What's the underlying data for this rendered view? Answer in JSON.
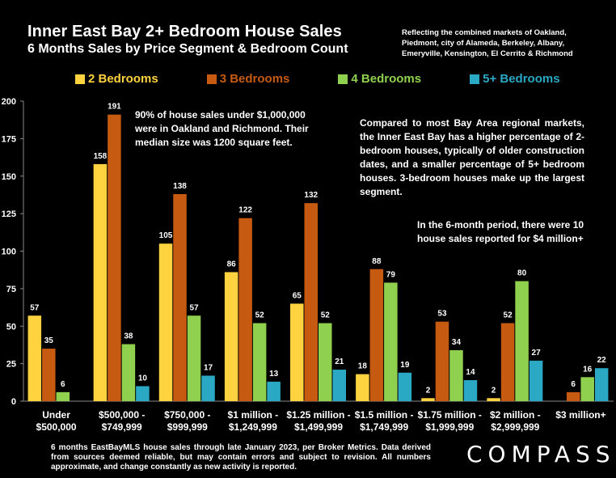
{
  "header": {
    "title": "Inner East Bay 2+ Bedroom House Sales",
    "subtitle": "6 Months Sales by Price Segment & Bedroom Count",
    "markets_note": "Reflecting the combined markets of Oakland, Piedmont, city of Alameda, Berkeley, Albany, Emeryville, Kensington, El Cerrito & Richmond"
  },
  "annotations": {
    "under_1m": "90% of house sales under $1,000,000 were in Oakland and Richmond. Their median size was 1200 square feet.",
    "comparison": "Compared to most Bay Area regional markets, the Inner East Bay has a higher percentage of 2-bedroom houses, typically of older construction dates, and a smaller percentage of 5+ bedroom houses. 3-bedroom houses make up the largest segment.",
    "over_4m": "In the 6-month period, there were 10 house sales reported for $4 million+"
  },
  "footer": {
    "source": "6 months EastBayMLS house sales through late January 2023, per Broker Metrics. Data derived from sources deemed reliable, but may contain errors and subject to revision. All numbers approximate, and change constantly as new activity is reported.",
    "logo": "COMPASS"
  },
  "chart_data": {
    "type": "bar",
    "categories": [
      [
        "Under",
        "$500,000"
      ],
      [
        "$500,000 -",
        "$749,999"
      ],
      [
        "$750,000 -",
        "$999,999"
      ],
      [
        "$1 million -",
        "$1,249,999"
      ],
      [
        "$1.25 million -",
        "$1,499,999"
      ],
      [
        "$1.5 million -",
        "$1,749,999"
      ],
      [
        "$1.75 million -",
        "$1,999,999"
      ],
      [
        "$2 million -",
        "$2,999,999"
      ],
      [
        "$3 million+"
      ]
    ],
    "series": [
      {
        "name": "2 Bedrooms",
        "color": "#FFD23F",
        "values": [
          57,
          158,
          105,
          86,
          65,
          18,
          2,
          2,
          0
        ]
      },
      {
        "name": "3 Bedrooms",
        "color": "#C65A11",
        "values": [
          35,
          191,
          138,
          122,
          132,
          88,
          53,
          52,
          6
        ]
      },
      {
        "name": "4 Bedrooms",
        "color": "#8FD14F",
        "values": [
          6,
          38,
          57,
          52,
          52,
          79,
          34,
          80,
          16
        ]
      },
      {
        "name": "5+ Bedrooms",
        "color": "#2AA8C4",
        "values": [
          0,
          10,
          17,
          13,
          21,
          19,
          14,
          27,
          22
        ]
      }
    ],
    "y_ticks": [
      "0",
      "25",
      "50",
      "75",
      "100",
      "125",
      "150",
      "175",
      "200"
    ],
    "ylim": [
      0,
      200
    ],
    "legend_position": "top"
  }
}
